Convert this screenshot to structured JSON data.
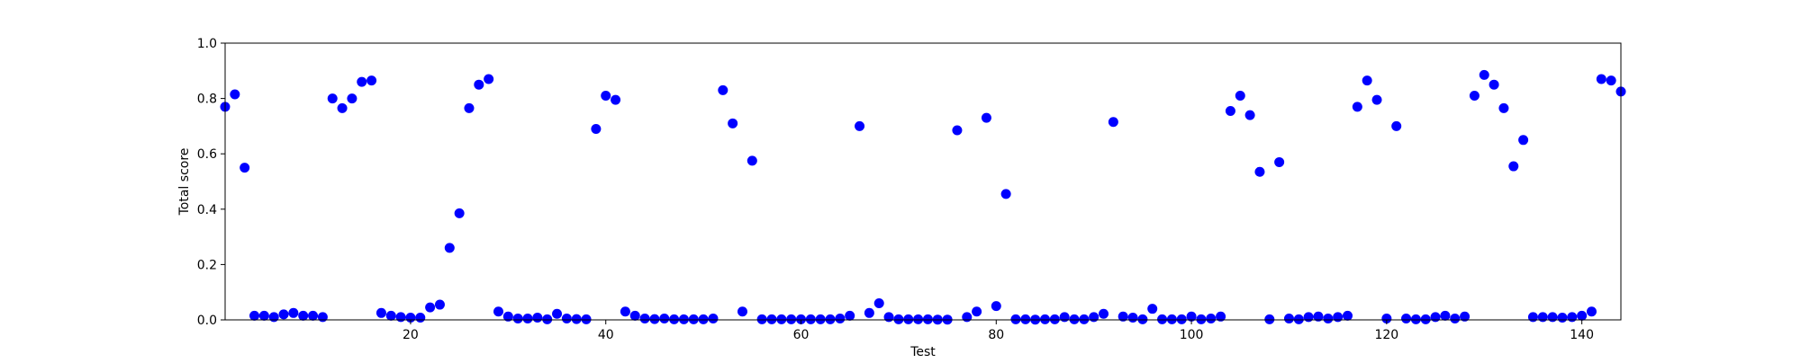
{
  "chart_data": {
    "type": "scatter",
    "title": "",
    "xlabel": "Test",
    "ylabel": "Total score",
    "xlim": [
      1,
      144
    ],
    "ylim": [
      0,
      1.0
    ],
    "x_ticks": [
      20,
      40,
      60,
      80,
      100,
      120,
      140
    ],
    "y_ticks": [
      0.0,
      0.2,
      0.4,
      0.6,
      0.8,
      1.0
    ],
    "y_tick_labels": [
      "0.0",
      "0.2",
      "0.4",
      "0.6",
      "0.8",
      "1.0"
    ],
    "grid": false,
    "marker_color": "#0000ff",
    "series": [
      {
        "x": [
          1,
          2,
          3,
          4,
          5,
          6,
          7,
          8,
          9,
          10,
          11,
          12,
          13,
          14,
          15,
          16,
          17,
          18,
          19,
          20,
          21,
          22,
          23,
          24,
          25,
          26,
          27,
          28,
          29,
          30,
          31,
          32,
          33,
          34,
          35,
          36,
          37,
          38,
          39,
          40,
          41,
          42,
          43,
          44,
          45,
          46,
          47,
          48,
          49,
          50,
          51,
          52,
          53,
          54,
          55,
          56,
          57,
          58,
          59,
          60,
          61,
          62,
          63,
          64,
          65,
          66,
          67,
          68,
          69,
          70,
          71,
          72,
          73,
          74,
          75,
          76,
          77,
          78,
          79,
          80,
          81,
          82,
          83,
          84,
          85,
          86,
          87,
          88,
          89,
          90,
          91,
          92,
          93,
          94,
          95,
          96,
          97,
          98,
          99,
          100,
          101,
          102,
          103,
          104,
          105,
          106,
          107,
          108,
          109,
          110,
          111,
          112,
          113,
          114,
          115,
          116,
          117,
          118,
          119,
          120,
          121,
          122,
          123,
          124,
          125,
          126,
          127,
          128,
          129,
          130,
          131,
          132,
          133,
          134,
          135,
          136,
          137,
          138,
          139,
          140,
          141,
          142,
          143,
          144
        ],
        "y": [
          0.77,
          0.815,
          0.55,
          0.015,
          0.015,
          0.01,
          0.02,
          0.025,
          0.015,
          0.015,
          0.01,
          0.8,
          0.765,
          0.8,
          0.86,
          0.865,
          0.025,
          0.015,
          0.01,
          0.008,
          0.008,
          0.045,
          0.055,
          0.26,
          0.385,
          0.765,
          0.85,
          0.87,
          0.03,
          0.012,
          0.005,
          0.005,
          0.008,
          0.002,
          0.022,
          0.005,
          0.003,
          0.002,
          0.69,
          0.81,
          0.795,
          0.03,
          0.015,
          0.005,
          0.003,
          0.005,
          0.002,
          0.002,
          0.002,
          0.002,
          0.005,
          0.83,
          0.71,
          0.03,
          0.575,
          0.002,
          0.002,
          0.002,
          0.002,
          0.002,
          0.002,
          0.002,
          0.002,
          0.005,
          0.015,
          0.7,
          0.025,
          0.06,
          0.01,
          0.002,
          0.002,
          0.002,
          0.002,
          0.001,
          0.001,
          0.685,
          0.01,
          0.03,
          0.73,
          0.05,
          0.455,
          0.002,
          0.002,
          0.001,
          0.002,
          0.002,
          0.01,
          0.002,
          0.002,
          0.01,
          0.022,
          0.715,
          0.012,
          0.008,
          0.002,
          0.04,
          0.002,
          0.002,
          0.002,
          0.012,
          0.002,
          0.005,
          0.012,
          0.755,
          0.81,
          0.74,
          0.535,
          0.002,
          0.57,
          0.005,
          0.002,
          0.01,
          0.012,
          0.005,
          0.01,
          0.015,
          0.77,
          0.865,
          0.795,
          0.005,
          0.7,
          0.005,
          0.002,
          0.002,
          0.01,
          0.015,
          0.005,
          0.012,
          0.81,
          0.885,
          0.85,
          0.765,
          0.555,
          0.65,
          0.01,
          0.01,
          0.01,
          0.008,
          0.01,
          0.015,
          0.03,
          0.87,
          0.865,
          0.825
        ]
      }
    ]
  }
}
